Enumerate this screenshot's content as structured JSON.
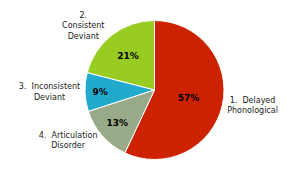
{
  "chart_data": {
    "type": "pie",
    "categories": [
      "1.  Delayed\nPhonological",
      "2.\nConsistent\nDeviant",
      "3.  Inconsistent\nDeviant",
      "4.  Articulation\nDisorder"
    ],
    "values": [
      57,
      21,
      9,
      13
    ],
    "value_labels": [
      "57%",
      "21%",
      "9%",
      "13%"
    ],
    "colors": [
      "#cc2200",
      "#99cc22",
      "#22aacc",
      "#99aa88"
    ],
    "data_labels": true
  }
}
